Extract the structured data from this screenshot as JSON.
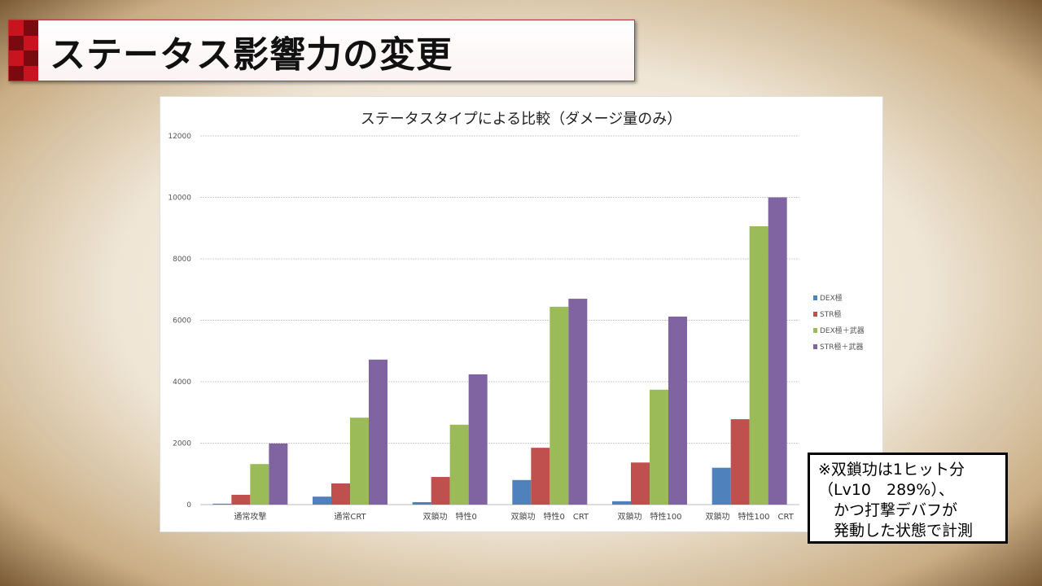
{
  "slide_title": "ステータス影響力の変更",
  "note": {
    "lines": [
      "※双鎖功は1ヒット分",
      "（Lv10　289%）、",
      "　かつ打撃デバフが",
      "　発動した状態で計測"
    ]
  },
  "chart_data": {
    "type": "bar",
    "title": "ステータスタイプによる比較（ダメージ量のみ）",
    "xlabel": "",
    "ylabel": "",
    "ylim": [
      0,
      12000
    ],
    "yticks": [
      0,
      2000,
      4000,
      6000,
      8000,
      10000,
      12000
    ],
    "grid": true,
    "legend_position": "right",
    "categories": [
      "通常攻撃",
      "通常CRT",
      "双鎖功　特性0",
      "双鎖功　特性0　CRT",
      "双鎖功　特性100",
      "双鎖功　特性100　CRT"
    ],
    "series": [
      {
        "name": "DEX極",
        "color": "#4f81bd",
        "values": [
          30,
          260,
          80,
          800,
          110,
          1200
        ]
      },
      {
        "name": "STR極",
        "color": "#c0504d",
        "values": [
          320,
          690,
          900,
          1850,
          1370,
          2780
        ]
      },
      {
        "name": "DEX極＋武器",
        "color": "#9bbb59",
        "values": [
          1320,
          2830,
          2600,
          6440,
          3740,
          9060
        ]
      },
      {
        "name": "STR極＋武器",
        "color": "#8064a2",
        "values": [
          1990,
          4720,
          4240,
          6700,
          6120,
          10000
        ]
      }
    ]
  }
}
